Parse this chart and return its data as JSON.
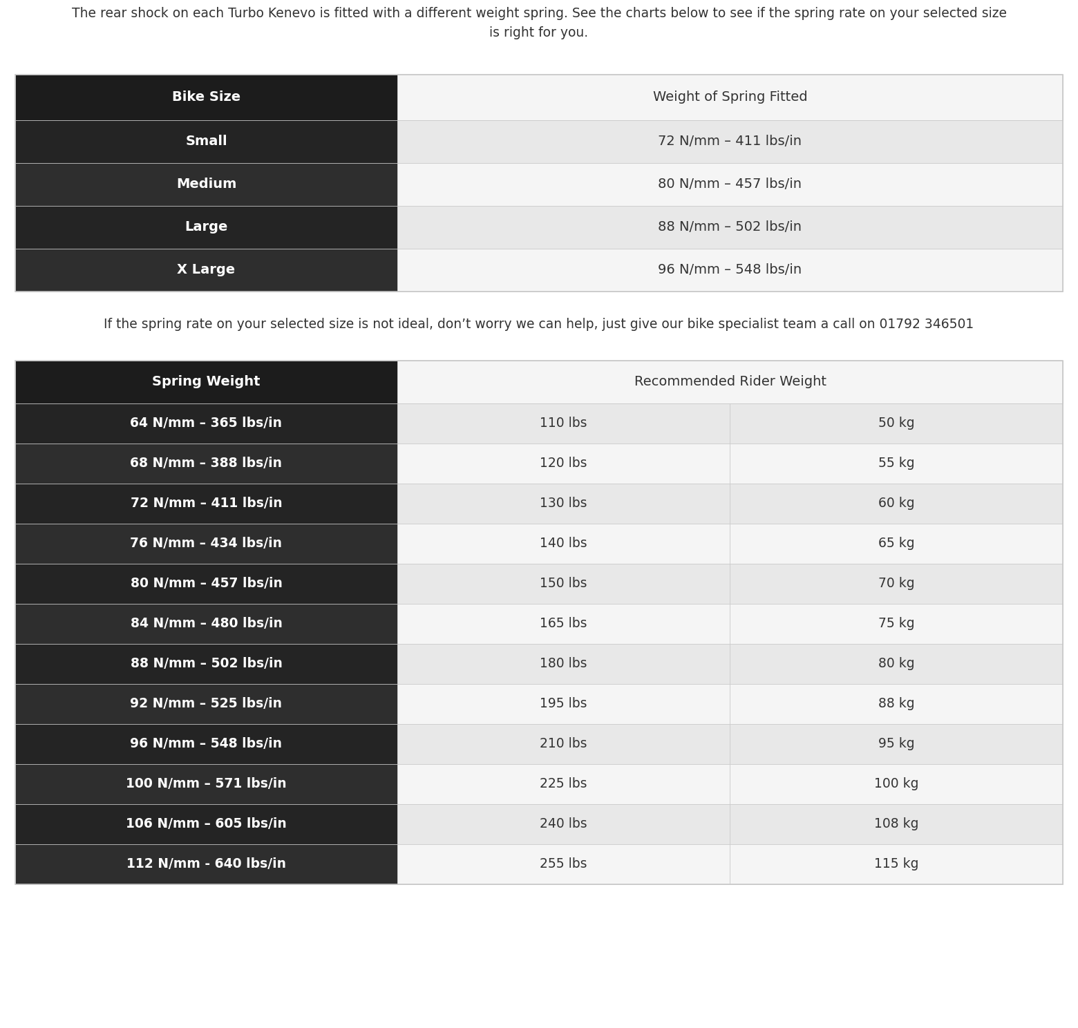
{
  "intro_text_line1": "The rear shock on each Turbo Kenevo is fitted with a different weight spring. See the charts below to see if the spring rate on your selected size",
  "intro_text_line2": "is right for you.",
  "middle_text": "If the spring rate on your selected size is not ideal, don’t worry we can help, just give our bike specialist team a call on 01792 346501",
  "table1_header": [
    "Bike Size",
    "Weight of Spring Fitted"
  ],
  "table1_rows": [
    [
      "Small",
      "72 N/mm – 411 lbs/in"
    ],
    [
      "Medium",
      "80 N/mm – 457 lbs/in"
    ],
    [
      "Large",
      "88 N/mm – 502 lbs/in"
    ],
    [
      "X Large",
      "96 N/mm – 548 lbs/in"
    ]
  ],
  "table2_header": [
    "Spring Weight",
    "Recommended Rider Weight"
  ],
  "table2_rows": [
    [
      "64 N/mm – 365 lbs/in",
      "110 lbs",
      "50 kg"
    ],
    [
      "68 N/mm – 388 lbs/in",
      "120 lbs",
      "55 kg"
    ],
    [
      "72 N/mm – 411 lbs/in",
      "130 lbs",
      "60 kg"
    ],
    [
      "76 N/mm – 434 lbs/in",
      "140 lbs",
      "65 kg"
    ],
    [
      "80 N/mm – 457 lbs/in",
      "150 lbs",
      "70 kg"
    ],
    [
      "84 N/mm – 480 lbs/in",
      "165 lbs",
      "75 kg"
    ],
    [
      "88 N/mm – 502 lbs/in",
      "180 lbs",
      "80 kg"
    ],
    [
      "92 N/mm – 525 lbs/in",
      "195 lbs",
      "88 kg"
    ],
    [
      "96 N/mm – 548 lbs/in",
      "210 lbs",
      "95 kg"
    ],
    [
      "100 N/mm – 571 lbs/in",
      "225 lbs",
      "100 kg"
    ],
    [
      "106 N/mm – 605 lbs/in",
      "240 lbs",
      "108 kg"
    ],
    [
      "112 N/mm - 640 lbs/in",
      "255 lbs",
      "115 kg"
    ]
  ],
  "dark_header_bg": "#1c1c1c",
  "dark_row_bg1": "#2e2e2e",
  "dark_row_bg2": "#242424",
  "light_row_bg1": "#f5f5f5",
  "light_row_bg2": "#e8e8e8",
  "border_color": "#c8c8c8",
  "header_text_color": "#ffffff",
  "dark_row_text_color": "#ffffff",
  "light_row_text_color": "#333333",
  "intro_text_color": "#333333",
  "background_color": "#ffffff",
  "fig_w": 15.6,
  "fig_h": 14.88,
  "dpi": 100
}
